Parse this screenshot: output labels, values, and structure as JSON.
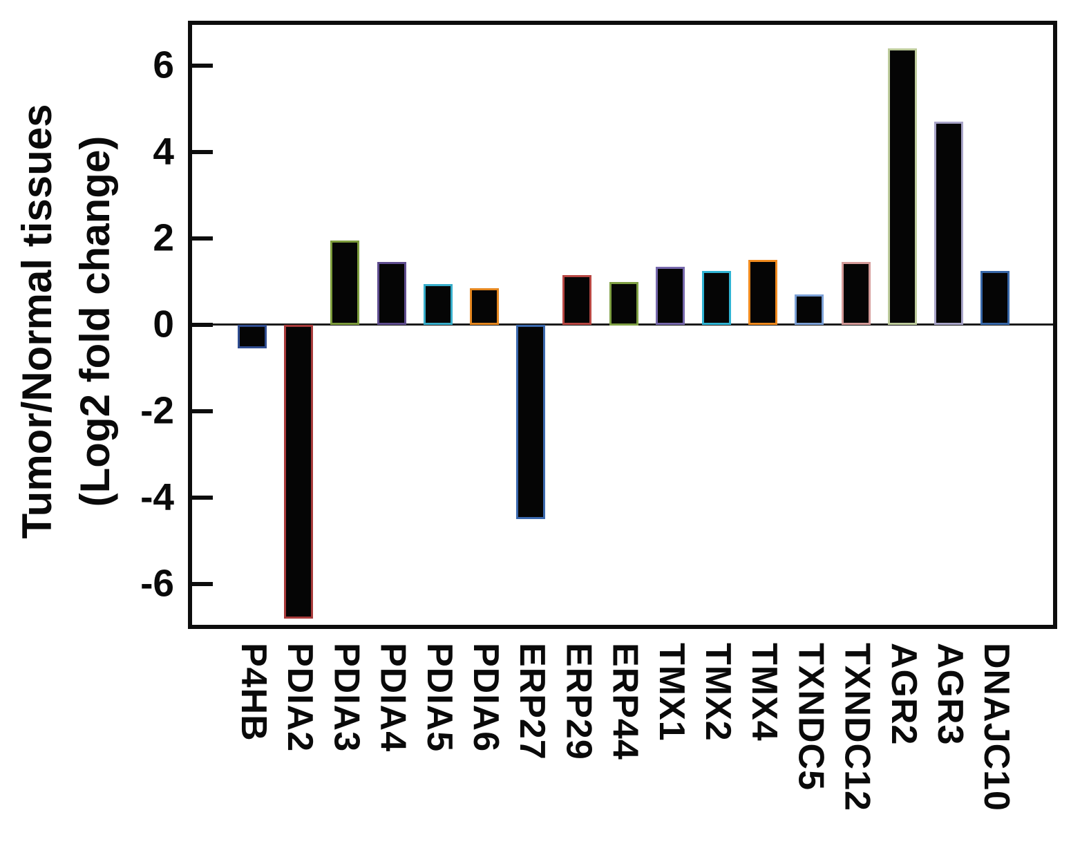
{
  "chart_data": {
    "type": "bar",
    "title": "",
    "ylabel_line1": "Tumor/Normal tissues",
    "ylabel_line2": "(Log2 fold change)",
    "xlabel": "",
    "categories": [
      "P4HB",
      "PDIA2",
      "PDIA3",
      "PDIA4",
      "PDIA5",
      "PDIA6",
      "ERP27",
      "ERP29",
      "ERP44",
      "TMX1",
      "TMX2",
      "TMX4",
      "TXNDC5",
      "TXNDC12",
      "AGR2",
      "AGR3",
      "DNAJC10"
    ],
    "values": [
      -0.55,
      -6.8,
      1.95,
      1.45,
      0.95,
      0.85,
      -4.5,
      1.15,
      1.0,
      1.35,
      1.25,
      1.5,
      0.7,
      1.45,
      6.4,
      4.7,
      1.25
    ],
    "bar_fill_color": "#050505",
    "bar_edge_colors": [
      "#2F4C8F",
      "#A83B3B",
      "#7D9C3C",
      "#5E4C8E",
      "#38AECB",
      "#E5871F",
      "#3B69AE",
      "#B84743",
      "#7FA044",
      "#7668AC",
      "#2FB4D4",
      "#F08A1E",
      "#7BA0D6",
      "#D49A98",
      "#BECC9C",
      "#A8A4C8",
      "#3767A8"
    ],
    "yticks": [
      6,
      4,
      2,
      0,
      -2,
      -4,
      -6
    ],
    "ylim": [
      -7.04,
      7.04
    ],
    "grid": false,
    "legend_position": "none",
    "x_tick_rotation": "vertical",
    "frame_color": "#0d0d0d",
    "background_color": "#ffffff"
  }
}
